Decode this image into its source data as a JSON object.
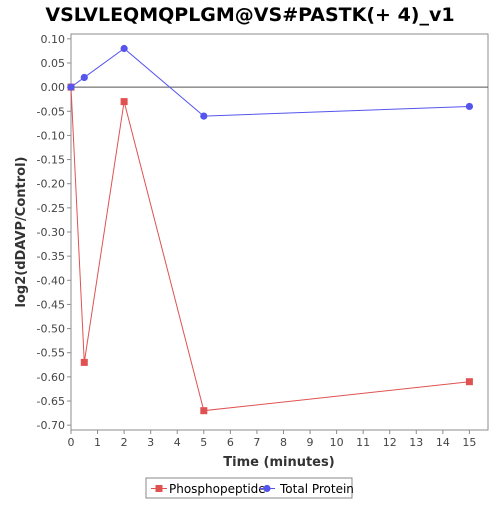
{
  "chart_data": {
    "type": "line",
    "title": "VSLVLEQMQPLGM@VS#PASTK(+ 4)_v1",
    "xlabel": "Time (minutes)",
    "ylabel": "log2(dDAVP/Control)",
    "xlim": [
      0,
      15.7
    ],
    "ylim": [
      -0.71,
      0.11
    ],
    "xticks": [
      0,
      1,
      2,
      3,
      4,
      5,
      6,
      7,
      8,
      9,
      10,
      11,
      12,
      13,
      14,
      15
    ],
    "yticks": [
      0.1,
      0.05,
      0.0,
      -0.05,
      -0.1,
      -0.15,
      -0.2,
      -0.25,
      -0.3,
      -0.35,
      -0.4,
      -0.45,
      -0.5,
      -0.55,
      -0.6,
      -0.65,
      -0.7
    ],
    "ytick_labels": [
      "0.10",
      "0.05",
      "0.00",
      "-0.05",
      "-0.10",
      "-0.15",
      "-0.20",
      "-0.25",
      "-0.30",
      "-0.35",
      "-0.40",
      "-0.45",
      "-0.50",
      "-0.55",
      "-0.60",
      "-0.65",
      "-0.70"
    ],
    "zero_line": true,
    "grid": false,
    "legend_position": "bottom",
    "series": [
      {
        "name": "Phosphopeptide",
        "color": "#e05252",
        "marker": "square",
        "x": [
          0,
          0.5,
          2,
          5,
          15
        ],
        "y": [
          0.0,
          -0.57,
          -0.03,
          -0.67,
          -0.61
        ]
      },
      {
        "name": "Total Protein",
        "color": "#5555ee",
        "marker": "circle",
        "x": [
          0,
          0.5,
          2,
          5,
          15
        ],
        "y": [
          0.0,
          0.02,
          0.08,
          -0.06,
          -0.04
        ]
      }
    ]
  }
}
